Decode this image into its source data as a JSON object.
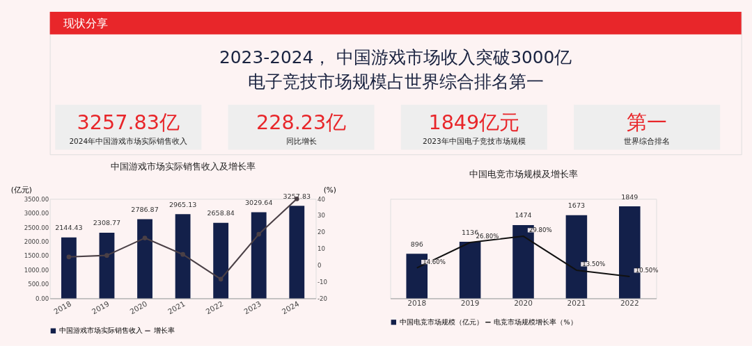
{
  "chart_data": [
    {
      "type": "other",
      "title": "2023-2024， 中国游戏市场收入突破3000亿",
      "subtitle": "电子竞技市场规模占世界综合排名第一",
      "annotations": [
        "现状分享",
        "3257.83亿",
        "2024年中国游戏市场实际销售收入",
        "228.23亿",
        "同比增长",
        "1849亿元",
        "2023年中国电子竞技市场规模",
        "第一",
        "世界综合排名"
      ]
    },
    {
      "type": "bar",
      "title": "中国游戏市场实际销售收入及增长率",
      "categories": [
        "2018",
        "2019",
        "2020",
        "2021",
        "2022",
        "2023",
        "2024"
      ],
      "series": [
        {
          "name": "中国游戏市场实际销售收入",
          "color": "#13204a",
          "values": [
            2144.43,
            2308.77,
            2786.87,
            2965.13,
            2658.84,
            3029.64,
            3257.83
          ],
          "value_labels": [
            "2144.43",
            "2308.77",
            "2786.87",
            "2965.13",
            "2658.84",
            "3029.64",
            "3257.83"
          ]
        },
        {
          "name": "增长率",
          "type": "line",
          "axis": "y2",
          "color": "#4b4046",
          "values": [
            5,
            5.9,
            16.4,
            6.5,
            -8.4,
            18.7,
            40
          ]
        }
      ],
      "ylabel": "(亿元)",
      "y2label": "(%)",
      "ylim": [
        0,
        3500
      ],
      "yticks": [
        {
          "value": 0,
          "label": "0.00"
        },
        {
          "value": 500,
          "label": "500.00"
        },
        {
          "value": 1000,
          "label": "1000.00"
        },
        {
          "value": 1500,
          "label": "1500.00"
        },
        {
          "value": 2000,
          "label": "2000.00"
        },
        {
          "value": 2500,
          "label": "2500.00"
        },
        {
          "value": 3000,
          "label": "3000.00"
        },
        {
          "value": 3500,
          "label": "3500.00"
        }
      ],
      "y2lim": [
        -20,
        40
      ],
      "y2ticks": [
        -20,
        -10,
        0,
        10,
        20,
        30,
        40
      ],
      "marker": "circle",
      "legend": "bottom"
    },
    {
      "type": "bar",
      "title": "中国电竞市场规模及增长率",
      "categories": [
        "2018",
        "2019",
        "2020",
        "2021",
        "2022"
      ],
      "series": [
        {
          "name": "中国电竞市场规模（亿元）",
          "color": "#13204a",
          "values": [
            896,
            1136,
            1474,
            1673,
            1849
          ],
          "value_labels": [
            "896",
            "1136",
            "1474",
            "1673",
            "1849"
          ]
        },
        {
          "name": "电竞市场规模增长率（%）",
          "type": "line",
          "axis": "y2",
          "color": "#111111",
          "values": [
            14.6,
            26.8,
            29.8,
            13.5,
            10.5
          ],
          "value_labels": [
            "14.60%",
            "26.80%",
            "29.80%",
            "13.50%",
            "10.50%"
          ]
        }
      ],
      "tick_labels": "x",
      "legend": "bottom"
    }
  ]
}
